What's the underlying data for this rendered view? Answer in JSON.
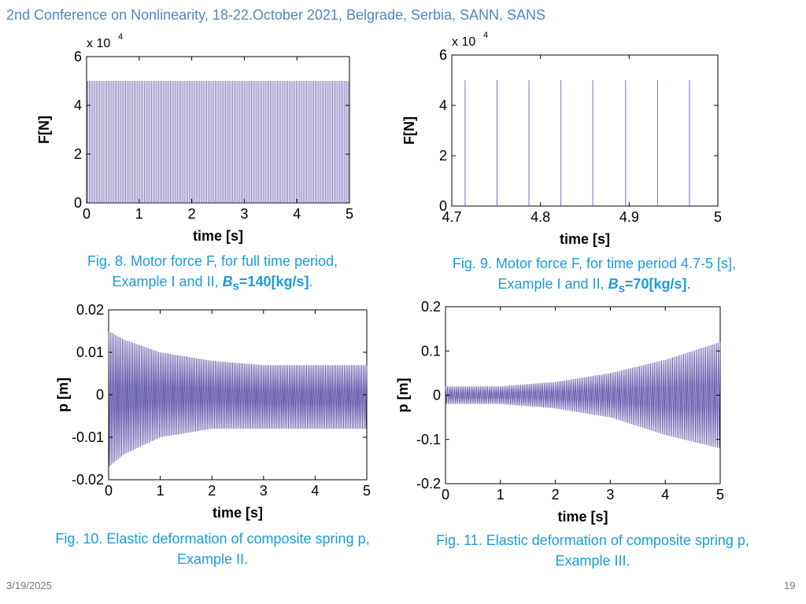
{
  "slide": {
    "header": "2nd Conference on Nonlinearity, 18-22.October 2021, Belgrade, Serbia, SANN, SANS",
    "date": "3/19/2025",
    "page_number": "19"
  },
  "captions": {
    "fig8": {
      "line1": "Fig. 8. Motor force F, for full time period,",
      "line2_pre": "Example I and II, ",
      "symbol": "B",
      "subscript": "s",
      "value": "=140[kg/s]",
      "end": "."
    },
    "fig9": {
      "line1": "Fig. 9. Motor force F, for time period 4.7-5 [s],",
      "line2_pre": "Example I and II, ",
      "symbol": "B",
      "subscript": "s",
      "value": "=70[kg/s]",
      "end": "."
    },
    "fig10": {
      "line1": "Fig. 10. Elastic deformation of composite spring p,",
      "line2": "Example II."
    },
    "fig11": {
      "line1": "Fig. 11. Elastic deformation of composite spring p,",
      "line2": "Example III."
    }
  },
  "chart_data": [
    {
      "id": "fig8",
      "type": "line",
      "xlabel": "time [s]",
      "ylabel": "F[N]",
      "exponent_label": "x 10",
      "exponent_power": "4",
      "xlim": [
        0,
        5
      ],
      "ylim": [
        0,
        6
      ],
      "xticks": [
        "0",
        "1",
        "2",
        "3",
        "4",
        "5"
      ],
      "yticks": [
        "0",
        "2",
        "4",
        "6"
      ],
      "series_color": "#7b6fb8",
      "impulse_height": 5,
      "impulse_start": 0.02,
      "impulse_step": 0.0328,
      "impulse_count": 152
    },
    {
      "id": "fig9",
      "type": "line",
      "xlabel": "time [s]",
      "ylabel": "F[N]",
      "exponent_label": "x 10",
      "exponent_power": "4",
      "xlim": [
        4.7,
        5
      ],
      "ylim": [
        0,
        6
      ],
      "xticks": [
        "4.7",
        "4.8",
        "4.9",
        "5"
      ],
      "yticks": [
        "0",
        "2",
        "4",
        "6"
      ],
      "series_color": "#7b6fb8",
      "impulse_height": 5,
      "impulse_x": [
        4.715,
        4.751,
        4.787,
        4.823,
        4.859,
        4.896,
        4.932,
        4.968
      ]
    },
    {
      "id": "fig10",
      "type": "line",
      "xlabel": "time [s]",
      "ylabel": "p [m]",
      "xlim": [
        0,
        5
      ],
      "ylim": [
        -0.02,
        0.02
      ],
      "xticks": [
        "0",
        "1",
        "2",
        "3",
        "4",
        "5"
      ],
      "yticks": [
        "-0.02",
        "-0.01",
        "0",
        "0.01",
        "0.02"
      ],
      "series_color": "#5c52a8",
      "oscillation_cycles": 150,
      "envelope_t": [
        0,
        0.3,
        1,
        2,
        3,
        5
      ],
      "envelope_upper": [
        0.015,
        0.013,
        0.01,
        0.008,
        0.007,
        0.007
      ],
      "envelope_lower": [
        -0.017,
        -0.014,
        -0.01,
        -0.008,
        -0.008,
        -0.008
      ]
    },
    {
      "id": "fig11",
      "type": "line",
      "xlabel": "time [s]",
      "ylabel": "p [m]",
      "xlim": [
        0,
        5
      ],
      "ylim": [
        -0.2,
        0.2
      ],
      "xticks": [
        "0",
        "1",
        "2",
        "3",
        "4",
        "5"
      ],
      "yticks": [
        "-0.2",
        "-0.1",
        "0",
        "0.1",
        "0.2"
      ],
      "series_color": "#5c52a8",
      "oscillation_cycles": 150,
      "envelope_t": [
        0,
        1,
        2,
        3,
        4,
        5
      ],
      "envelope_upper": [
        0.02,
        0.02,
        0.03,
        0.05,
        0.08,
        0.12
      ],
      "envelope_lower": [
        -0.02,
        -0.02,
        -0.03,
        -0.05,
        -0.09,
        -0.12
      ]
    }
  ]
}
